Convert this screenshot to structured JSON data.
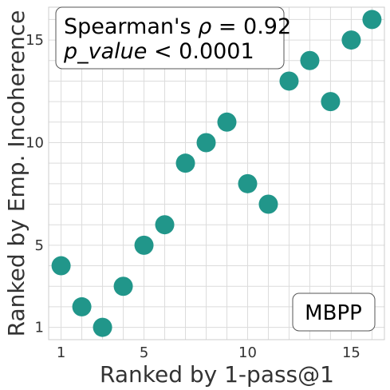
{
  "chart_data": {
    "type": "scatter",
    "title": "",
    "xlabel": "Ranked by 1-pass@1",
    "ylabel": "Ranked by Emp. Incoherence",
    "xlim": [
      0.4,
      16.6
    ],
    "ylim": [
      0.4,
      16.6
    ],
    "xticks": [
      1,
      5,
      10,
      15
    ],
    "yticks": [
      1,
      5,
      10,
      15
    ],
    "grid": true,
    "point_color": "#21968a",
    "points": [
      {
        "x": 1,
        "y": 4
      },
      {
        "x": 2,
        "y": 2
      },
      {
        "x": 3,
        "y": 1
      },
      {
        "x": 4,
        "y": 3
      },
      {
        "x": 5,
        "y": 5
      },
      {
        "x": 6,
        "y": 6
      },
      {
        "x": 7,
        "y": 9
      },
      {
        "x": 8,
        "y": 10
      },
      {
        "x": 9,
        "y": 11
      },
      {
        "x": 10,
        "y": 8
      },
      {
        "x": 11,
        "y": 7
      },
      {
        "x": 12,
        "y": 13
      },
      {
        "x": 13,
        "y": 14
      },
      {
        "x": 14,
        "y": 12
      },
      {
        "x": 15,
        "y": 15
      },
      {
        "x": 16,
        "y": 16
      }
    ],
    "annotations": {
      "stats_line1_prefix": "Spearman's ",
      "stats_line1_symbol": "ρ",
      "stats_line1_suffix": " = 0.92",
      "stats_line2_symbol": "p_value",
      "stats_line2_suffix": " < 0.0001",
      "dataset_label": "MBPP"
    }
  }
}
